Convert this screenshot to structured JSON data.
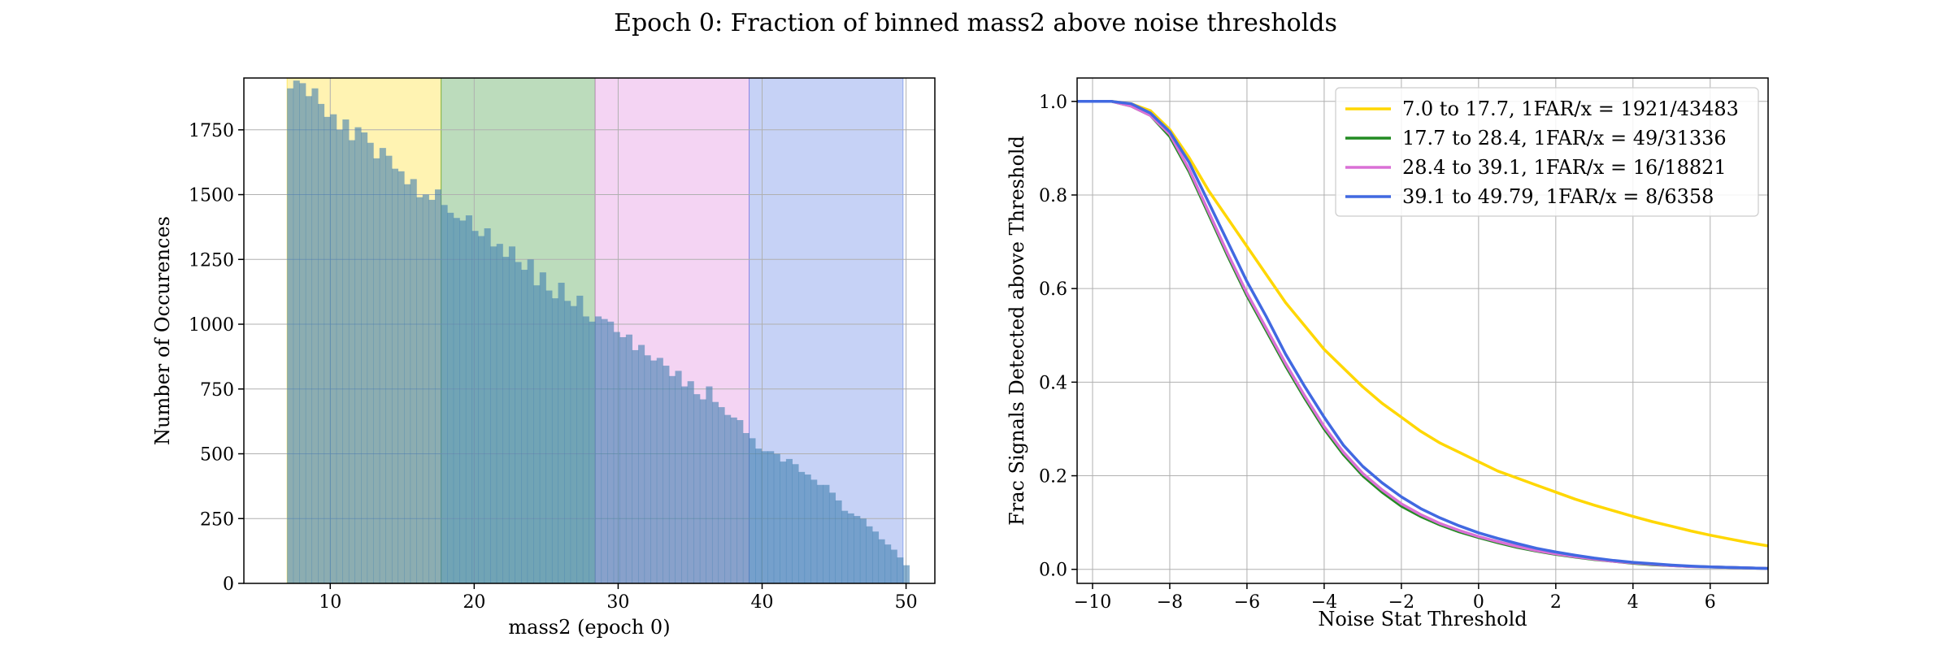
{
  "figure": {
    "title": "Epoch 0: Fraction of binned mass2 above noise thresholds"
  },
  "chart_data": [
    {
      "type": "bar",
      "subtype": "histogram",
      "xlabel": "mass2 (epoch 0)",
      "ylabel": "Number of Occurences",
      "xlim": [
        4,
        52
      ],
      "ylim": [
        0,
        1950
      ],
      "xticks": [
        10,
        20,
        30,
        40,
        50
      ],
      "yticks": [
        0,
        250,
        500,
        750,
        1000,
        1250,
        1500,
        1750
      ],
      "grid": true,
      "bar_color": "#3f7fb0",
      "bar_alpha": 0.6,
      "bin_start": 7.0,
      "bin_width": 0.4279,
      "values": [
        1910,
        1940,
        1930,
        1880,
        1910,
        1850,
        1800,
        1810,
        1750,
        1790,
        1710,
        1760,
        1740,
        1700,
        1640,
        1680,
        1650,
        1600,
        1590,
        1540,
        1560,
        1490,
        1500,
        1480,
        1520,
        1460,
        1430,
        1410,
        1400,
        1420,
        1360,
        1340,
        1370,
        1300,
        1310,
        1260,
        1300,
        1240,
        1210,
        1250,
        1150,
        1200,
        1130,
        1100,
        1160,
        1090,
        1070,
        1110,
        1030,
        1010,
        1030,
        1020,
        1010,
        970,
        950,
        960,
        900,
        920,
        880,
        860,
        870,
        840,
        800,
        820,
        760,
        780,
        730,
        710,
        760,
        700,
        680,
        650,
        640,
        630,
        580,
        560,
        520,
        510,
        510,
        500,
        470,
        480,
        460,
        430,
        420,
        400,
        380,
        380,
        350,
        320,
        280,
        270,
        260,
        250,
        220,
        200,
        170,
        150,
        130,
        100,
        70
      ]
    },
    {
      "type": "line",
      "xlabel": "Noise Stat Threshold",
      "ylabel": "Frac Signals Detected above Threshold",
      "xlim": [
        -10.4,
        7.5
      ],
      "ylim": [
        -0.03,
        1.05
      ],
      "xticks": [
        -10,
        -8,
        -6,
        -4,
        -2,
        0,
        2,
        4,
        6
      ],
      "yticks": [
        0.0,
        0.2,
        0.4,
        0.6,
        0.8,
        1.0
      ],
      "grid": true,
      "legend_position": "top-right",
      "x": [
        -10.4,
        -10,
        -9.5,
        -9,
        -8.5,
        -8,
        -7.5,
        -7,
        -6.5,
        -6,
        -5.5,
        -5,
        -4.5,
        -4,
        -3.5,
        -3,
        -2.5,
        -2,
        -1.5,
        -1,
        -0.5,
        0,
        0.5,
        1,
        1.5,
        2,
        2.5,
        3,
        3.5,
        4,
        4.5,
        5,
        5.5,
        6,
        6.5,
        7,
        7.5
      ],
      "series": [
        {
          "name": "7.0 to 17.7, 1FAR/x = 1921/43483",
          "color": "#ffd700",
          "values": [
            1.0,
            1.0,
            1.0,
            0.995,
            0.98,
            0.94,
            0.88,
            0.81,
            0.75,
            0.69,
            0.63,
            0.57,
            0.52,
            0.47,
            0.43,
            0.39,
            0.355,
            0.325,
            0.295,
            0.27,
            0.25,
            0.23,
            0.21,
            0.195,
            0.18,
            0.165,
            0.15,
            0.137,
            0.125,
            0.113,
            0.102,
            0.092,
            0.082,
            0.073,
            0.065,
            0.057,
            0.05
          ]
        },
        {
          "name": "17.7 to 28.4, 1FAR/x = 49/31336",
          "color": "#228b22",
          "values": [
            1.0,
            1.0,
            1.0,
            0.99,
            0.97,
            0.925,
            0.85,
            0.76,
            0.67,
            0.585,
            0.51,
            0.435,
            0.365,
            0.3,
            0.245,
            0.2,
            0.165,
            0.135,
            0.113,
            0.095,
            0.08,
            0.068,
            0.057,
            0.047,
            0.039,
            0.032,
            0.026,
            0.021,
            0.017,
            0.013,
            0.01,
            0.008,
            0.006,
            0.005,
            0.004,
            0.003,
            0.002
          ]
        },
        {
          "name": "28.4 to 39.1, 1FAR/x = 16/18821",
          "color": "#da70d6",
          "values": [
            1.0,
            1.0,
            1.0,
            0.99,
            0.97,
            0.93,
            0.855,
            0.765,
            0.675,
            0.59,
            0.515,
            0.44,
            0.37,
            0.305,
            0.25,
            0.205,
            0.17,
            0.14,
            0.117,
            0.098,
            0.083,
            0.07,
            0.059,
            0.049,
            0.04,
            0.033,
            0.027,
            0.022,
            0.017,
            0.014,
            0.011,
            0.008,
            0.006,
            0.005,
            0.004,
            0.003,
            0.002
          ]
        },
        {
          "name": "39.1 to 49.79, 1FAR/x = 8/6358",
          "color": "#4169e1",
          "values": [
            1.0,
            1.0,
            1.0,
            0.995,
            0.975,
            0.935,
            0.87,
            0.785,
            0.7,
            0.615,
            0.54,
            0.46,
            0.39,
            0.325,
            0.265,
            0.22,
            0.185,
            0.155,
            0.13,
            0.11,
            0.093,
            0.078,
            0.066,
            0.055,
            0.045,
            0.037,
            0.03,
            0.024,
            0.019,
            0.015,
            0.012,
            0.009,
            0.007,
            0.005,
            0.004,
            0.003,
            0.002
          ]
        }
      ]
    }
  ],
  "mass_bands": [
    {
      "from": 7.0,
      "to": 17.7,
      "color": "#ffd700"
    },
    {
      "from": 17.7,
      "to": 28.4,
      "color": "#228b22"
    },
    {
      "from": 28.4,
      "to": 39.1,
      "color": "#da70d6"
    },
    {
      "from": 39.1,
      "to": 49.79,
      "color": "#4169e1"
    }
  ]
}
